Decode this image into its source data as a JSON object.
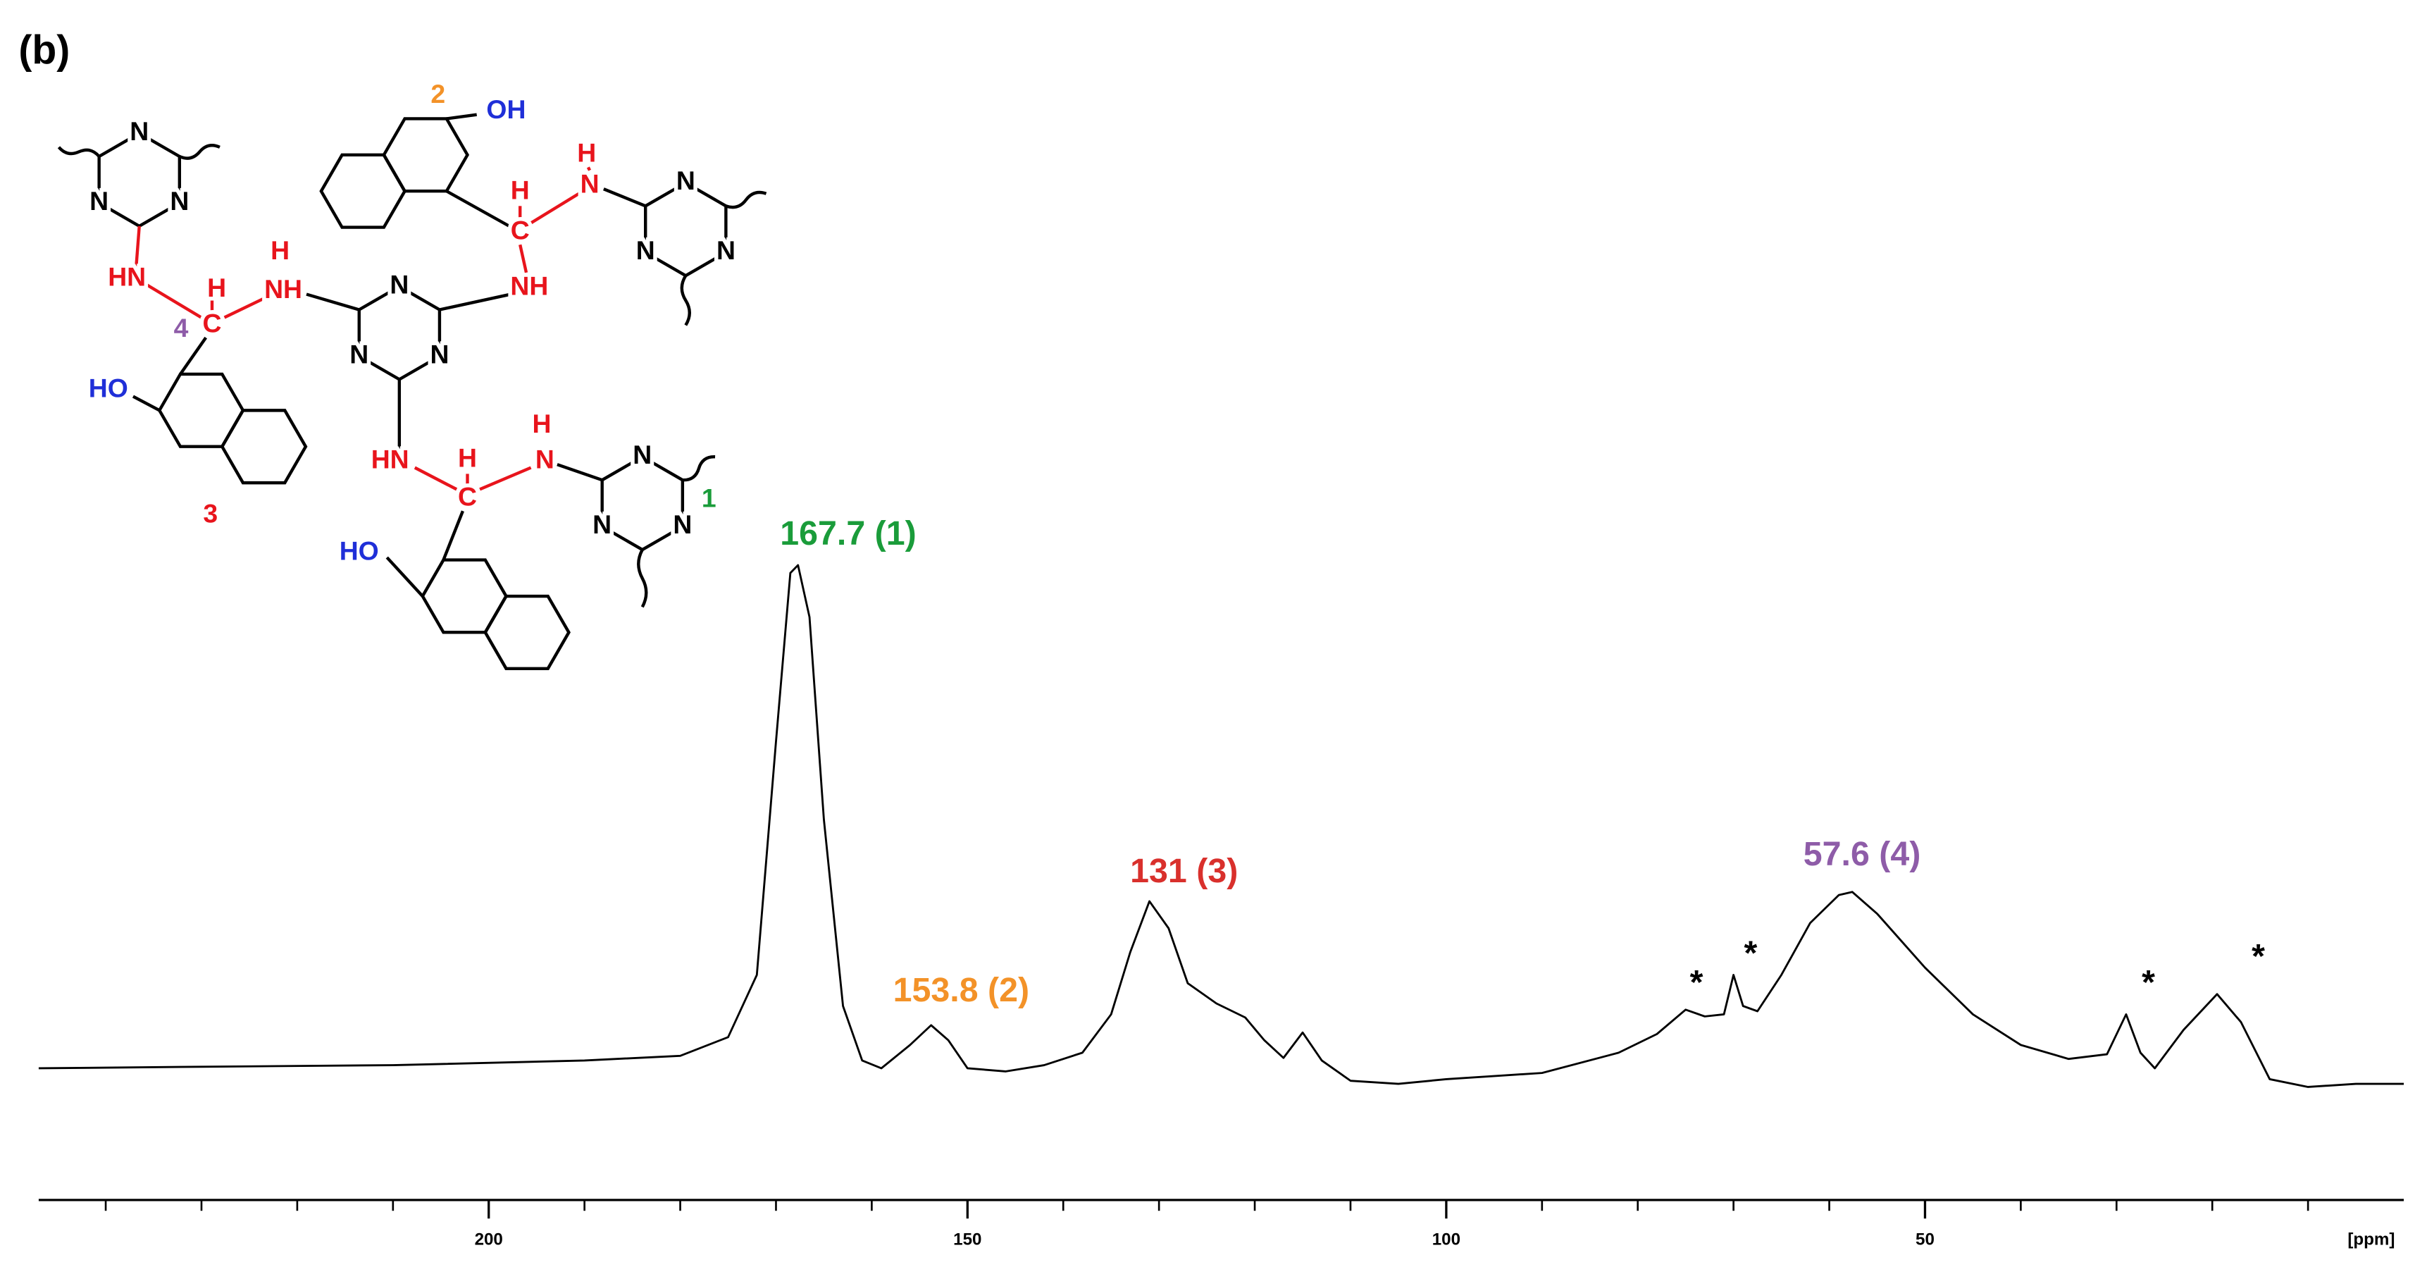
{
  "chart_data": {
    "type": "line",
    "panel_label": "(b)",
    "x_label": "[ppm]",
    "xlim": [
      247,
      0
    ],
    "ylim": [
      0,
      100
    ],
    "xticks": [
      200,
      150,
      100,
      50
    ],
    "xminorticks": [
      240,
      230,
      220,
      210,
      190,
      180,
      170,
      160,
      140,
      130,
      120,
      110,
      90,
      80,
      70,
      60,
      40,
      30,
      20,
      10
    ],
    "series": [
      {
        "color": "#000000",
        "x": [
          247,
          230,
          210,
          190,
          180,
          175,
          172,
          170,
          168.5,
          167.7,
          166.5,
          165,
          163,
          161,
          159,
          156,
          153.8,
          152,
          150,
          146,
          142,
          138,
          135,
          133,
          131,
          129,
          127,
          124,
          121,
          119,
          117,
          115,
          113,
          110,
          105,
          100,
          90,
          82,
          78,
          75,
          73,
          71,
          70,
          69,
          67.5,
          65,
          62,
          59,
          57.6,
          55,
          50,
          45,
          40,
          35,
          31,
          29,
          27.5,
          26,
          23,
          19.5,
          17,
          14,
          10,
          5,
          0
        ],
        "values": [
          3,
          3.3,
          3.6,
          4.5,
          5.4,
          9,
          21,
          66,
          98.5,
          100,
          90,
          51,
          15,
          4.5,
          3,
          7.5,
          11.3,
          8.4,
          3,
          2.4,
          3.6,
          6,
          13.4,
          25.4,
          35.2,
          30,
          19.4,
          15.5,
          12.8,
          8.4,
          5,
          9.9,
          4.5,
          0.6,
          0,
          0.9,
          2.1,
          6,
          9.6,
          14.3,
          13,
          13.4,
          21,
          15,
          14,
          21,
          31,
          36.4,
          37,
          32.8,
          22.4,
          13.4,
          7.5,
          4.8,
          5.7,
          13.4,
          6,
          3,
          10.4,
          17.3,
          11.9,
          0.9,
          -0.6,
          0,
          0
        ]
      }
    ],
    "annotations": [
      {
        "text": "167.7 (1)",
        "color": "#1a9c3a"
      },
      {
        "text": "153.8 (2)",
        "color": "#f39228"
      },
      {
        "text": "131 (3)",
        "color": "#d9302c"
      },
      {
        "text": "57.6 (4)",
        "color": "#8e5ca8"
      },
      {
        "text": "*",
        "color": "#000000"
      },
      {
        "text": "*",
        "color": "#000000"
      },
      {
        "text": "*",
        "color": "#000000"
      },
      {
        "text": "*",
        "color": "#000000"
      }
    ]
  },
  "structure": {
    "labels": [
      "N",
      "N",
      "N",
      "HN",
      "H",
      "C",
      "4",
      "H",
      "NH",
      "N",
      "N",
      "N",
      "H",
      "C",
      "H",
      "N",
      "NH",
      "N",
      "N",
      "N",
      "OH",
      "2",
      "HO",
      "3",
      "HN",
      "H",
      "C",
      "H",
      "N",
      "N",
      "N",
      "N",
      "1",
      "HO"
    ]
  }
}
